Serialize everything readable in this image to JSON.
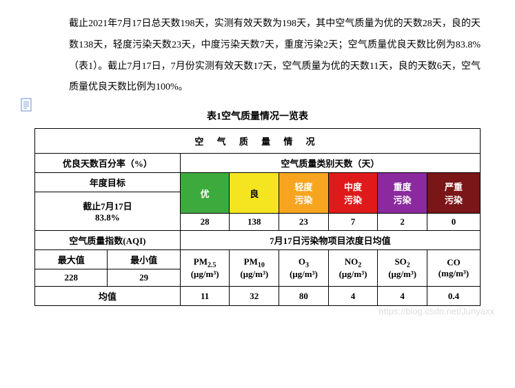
{
  "paragraph": "截止2021年7月17日总天数198天，实测有效天数为198天，其中空气质量为优的天数28天，良的天数138天，轻度污染天数23天，中度污染天数7天，重度污染2天；空气质量优良天数比例为83.8%（表1）。截止7月17日，7月份实测有效天数17天，空气质量为优的天数11天，良的天数6天，空气质量优良天数比例为100%。",
  "caption": "表1空气质量情况一览表",
  "table": {
    "main_title": "空 气 质 量 情 况",
    "pct_header": "优良天数百分率（%）",
    "category_days_header": "空气质量类别天数（天）",
    "year_target_label": "年度目标",
    "cutoff_label_line1": "截止7月17日",
    "cutoff_label_line2": "83.8%",
    "categories": [
      {
        "name": "优",
        "color": "#3daa3d",
        "days": "28"
      },
      {
        "name": "良",
        "color": "#f5e520",
        "days": "138"
      },
      {
        "name": "轻度\n污染",
        "color": "#f7a51e",
        "days": "23"
      },
      {
        "name": "中度\n污染",
        "color": "#e01a1a",
        "days": "7"
      },
      {
        "name": "重度\n污染",
        "color": "#8b2a9e",
        "days": "2"
      },
      {
        "name": "严重\n污染",
        "color": "#7a1518",
        "days": "0"
      }
    ],
    "aqi_header": "空气质量指数(AQI)",
    "pollutant_header": "7月17日污染物项目浓度日均值",
    "max_label": "最大值",
    "min_label": "最小值",
    "max_value": "228",
    "min_value": "29",
    "avg_label": "均值",
    "pollutants": [
      {
        "name": "PM",
        "sub": "2.5",
        "unit": "(μg/m³)",
        "value": "11"
      },
      {
        "name": "PM",
        "sub": "10",
        "unit": "(μg/m³)",
        "value": "32"
      },
      {
        "name": "O",
        "sub": "3",
        "unit": "(μg/m³)",
        "value": "80"
      },
      {
        "name": "NO",
        "sub": "2",
        "unit": "(μg/m³)",
        "value": "4"
      },
      {
        "name": "SO",
        "sub": "2",
        "unit": "(μg/m³)",
        "value": "4"
      },
      {
        "name": "CO",
        "sub": "",
        "unit": "(mg/m³)",
        "value": "0.4"
      }
    ]
  },
  "watermark": "https://blog.csdn.net/Junyaxx"
}
